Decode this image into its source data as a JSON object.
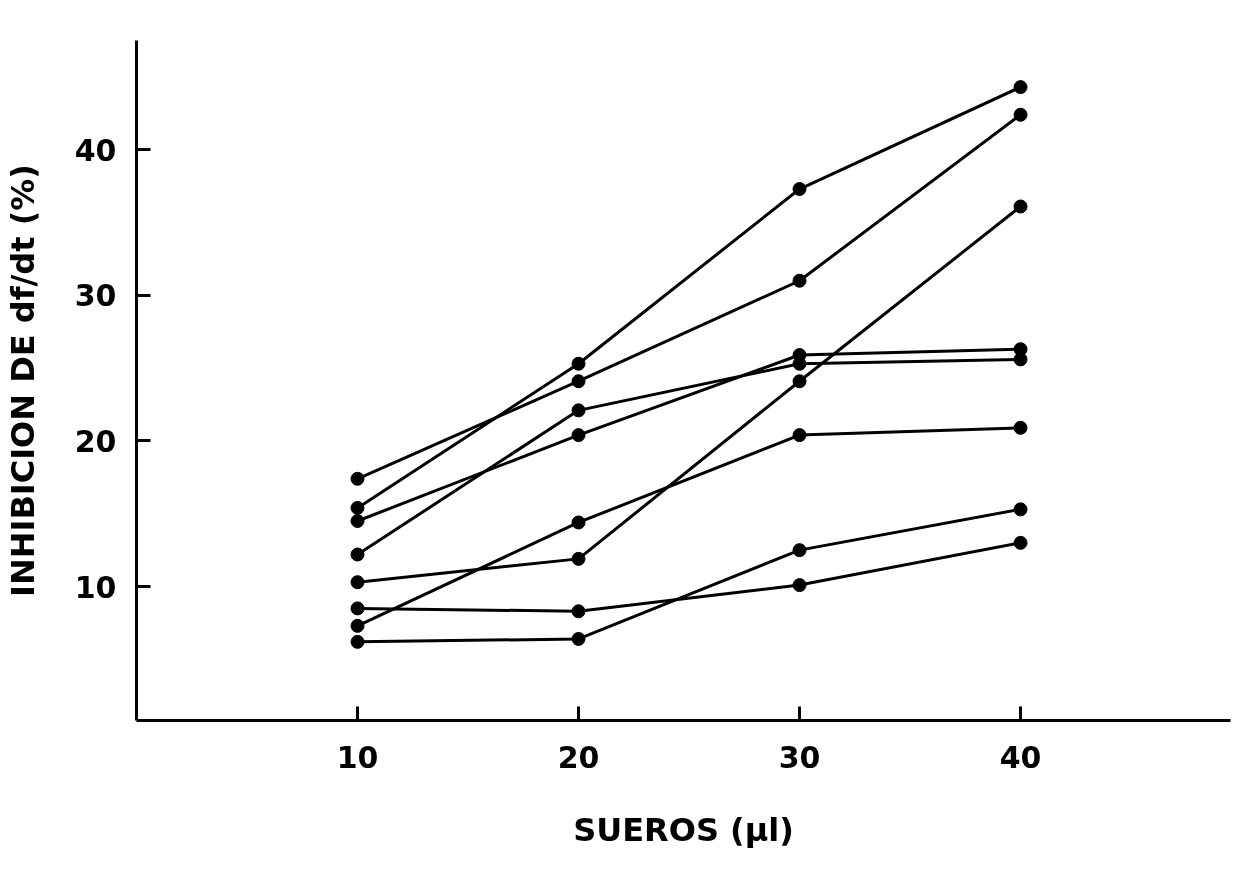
{
  "chart_data": {
    "type": "line",
    "xlabel": "SUEROS (µl)",
    "ylabel": "INHIBICION DE df/dt (%)",
    "x": [
      10,
      20,
      30,
      40
    ],
    "series": [
      {
        "color": "#000000",
        "values": [
          17.4,
          24.1,
          31.0,
          42.4
        ]
      },
      {
        "color": "#000000",
        "values": [
          15.4,
          25.3,
          37.3,
          44.3
        ]
      },
      {
        "color": "#000000",
        "values": [
          14.5,
          20.4,
          25.9,
          26.3
        ]
      },
      {
        "color": "#000000",
        "values": [
          12.2,
          22.1,
          25.3,
          25.6
        ]
      },
      {
        "color": "#000000",
        "values": [
          10.3,
          11.9,
          24.1,
          36.1
        ]
      },
      {
        "color": "#000000",
        "values": [
          8.5,
          8.3,
          10.1,
          13.0
        ]
      },
      {
        "color": "#000000",
        "values": [
          7.3,
          14.4,
          20.4,
          20.9
        ]
      },
      {
        "color": "#000000",
        "values": [
          6.2,
          6.4,
          12.5,
          15.3
        ]
      }
    ],
    "xlim": [
      0,
      49.5
    ],
    "ylim": [
      0.8,
      47.5
    ],
    "xticks": [
      10,
      20,
      30,
      40
    ],
    "yticks": [
      10,
      20,
      30,
      40
    ],
    "grid": false,
    "marker": "circle",
    "line_style": "solid"
  }
}
